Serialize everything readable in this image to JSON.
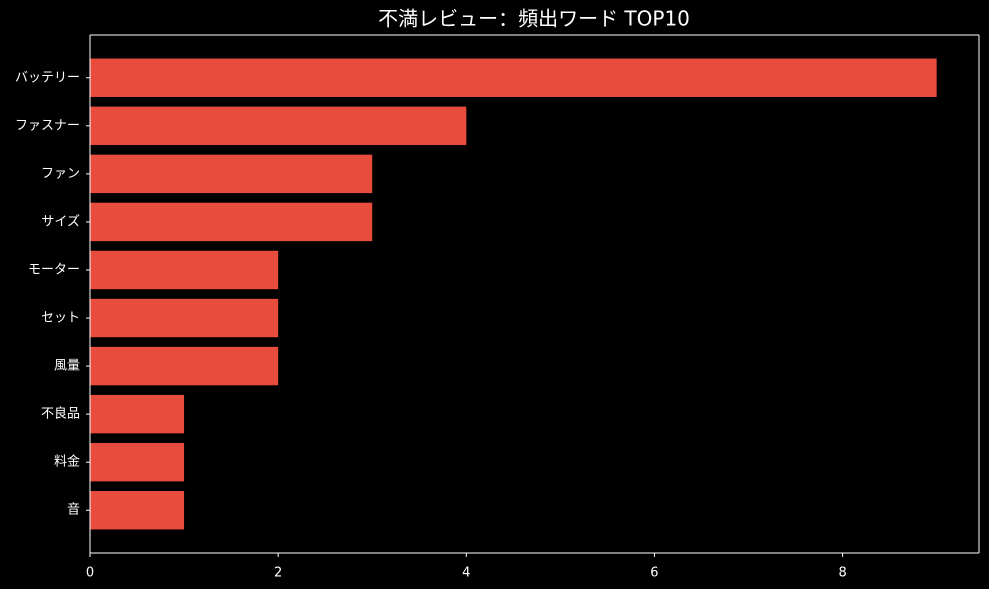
{
  "chart_data": {
    "type": "bar",
    "orientation": "horizontal",
    "title": "不満レビュー：頻出ワード TOP10",
    "categories": [
      "バッテリー",
      "ファスナー",
      "ファン",
      "サイズ",
      "モーター",
      "セット",
      "風量",
      "不良品",
      "料金",
      "音"
    ],
    "values": [
      9,
      4,
      3,
      3,
      2,
      2,
      2,
      1,
      1,
      1
    ],
    "color": "#e74c3c",
    "xlim": [
      0,
      9.45
    ],
    "xticks": [
      0,
      2,
      4,
      6,
      8
    ],
    "grid": false
  }
}
